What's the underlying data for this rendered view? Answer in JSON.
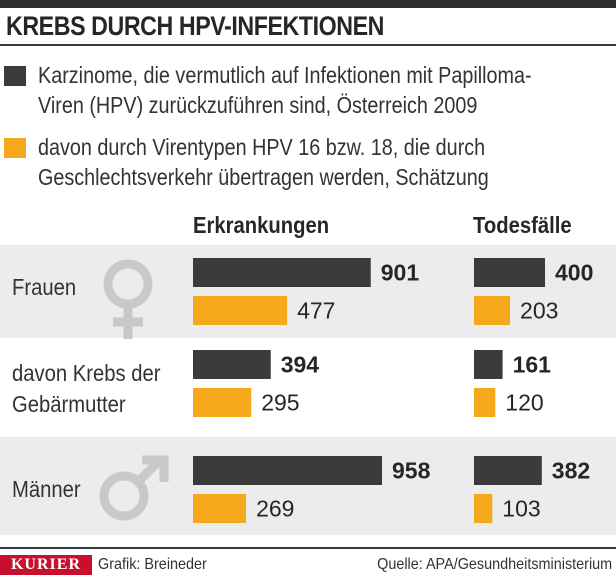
{
  "title": "KREBS DURCH HPV-INFEKTIONEN",
  "legend": [
    {
      "label": "Karzinome, die vermutlich auf Infektionen mit Papilloma-\nViren (HPV) zurückzuführen sind, Österreich 2009",
      "color": "#3b3b3b"
    },
    {
      "label": "davon durch Virentypen HPV 16 bzw. 18, die durch\nGeschlechtsverkehr übertragen werden, Schätzung",
      "color": "#f5a81c"
    }
  ],
  "colors": {
    "dark": "#3b3b3b",
    "orange": "#f5a81c",
    "band": "#ececec",
    "brand": "#c8102e"
  },
  "chart_data": {
    "type": "bar",
    "orientation": "horizontal",
    "panels": [
      "Erkrankungen",
      "Todesfälle"
    ],
    "categories": [
      "Frauen",
      "davon Krebs der Gebärmutter",
      "Männer"
    ],
    "category_lines": [
      [
        "Frauen"
      ],
      [
        "davon Krebs der",
        "Gebärmutter"
      ],
      [
        "Männer"
      ]
    ],
    "category_icons": [
      "female-symbol-icon",
      null,
      "male-symbol-icon"
    ],
    "series": [
      {
        "name": "Karzinome, die vermutlich auf Infektionen mit Papilloma-Viren (HPV) zurückzuführen sind, Österreich 2009",
        "color": "#3b3b3b",
        "Erkrankungen": [
          901,
          394,
          958
        ],
        "Todesfälle": [
          400,
          161,
          382
        ]
      },
      {
        "name": "davon durch Virentypen HPV 16 bzw. 18, die durch Geschlechtsverkehr übertragen werden, Schätzung",
        "color": "#f5a81c",
        "Erkrankungen": [
          477,
          295,
          269
        ],
        "Todesfälle": [
          203,
          120,
          103
        ]
      }
    ],
    "xlabel": "",
    "ylabel": "",
    "grid": false,
    "legend_position": "top"
  },
  "footer": {
    "brand": "KURIER",
    "credit": "Grafik: Breineder",
    "source": "Quelle: APA/Gesundheitsministerium"
  }
}
